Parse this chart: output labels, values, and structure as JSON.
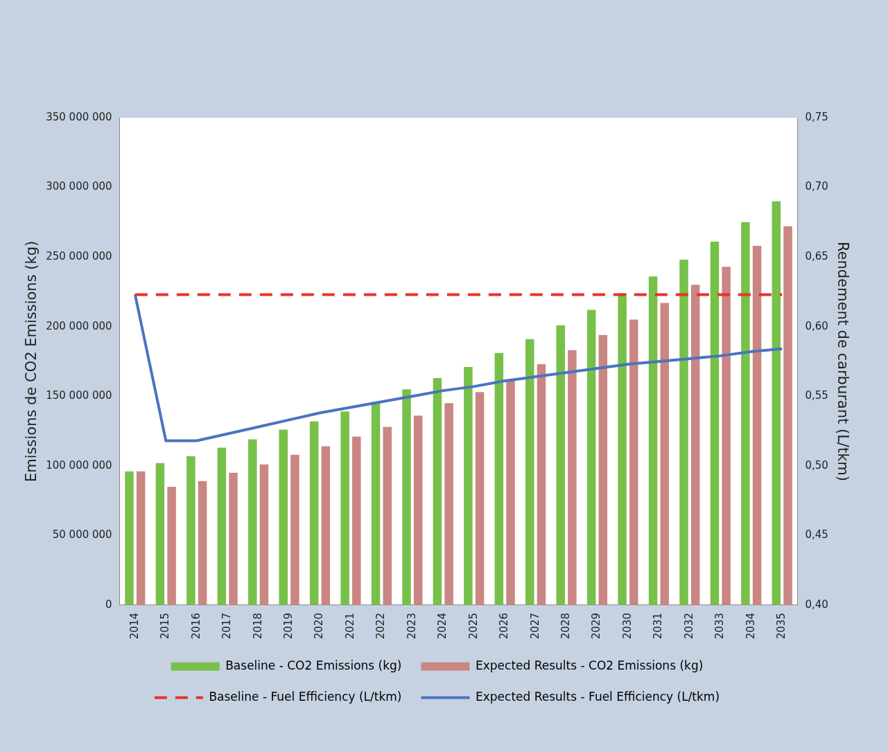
{
  "chart_data": {
    "type": "bar",
    "ylabel": "Emissions de CO2 Emissions (kg)",
    "y2label": "Rendement de carburant (L/tkm)",
    "categories": [
      "2014",
      "2015",
      "2016",
      "2017",
      "2018",
      "2019",
      "2020",
      "2021",
      "2022",
      "2023",
      "2024",
      "2025",
      "2026",
      "2027",
      "2028",
      "2029",
      "2030",
      "2031",
      "2032",
      "2033",
      "2034",
      "2035"
    ],
    "series": [
      {
        "name": "Baseline - CO2 Emissions (kg)",
        "color": "#77c04a",
        "values": [
          96000000,
          102000000,
          107000000,
          113000000,
          119000000,
          126000000,
          132000000,
          139000000,
          146000000,
          155000000,
          163000000,
          171000000,
          181000000,
          191000000,
          201000000,
          212000000,
          224000000,
          236000000,
          248000000,
          261000000,
          275000000,
          290000000
        ]
      },
      {
        "name": "Expected Results - CO2 Emissions (kg)",
        "color": "#c98683",
        "values": [
          96000000,
          85000000,
          89000000,
          95000000,
          101000000,
          108000000,
          114000000,
          121000000,
          128000000,
          136000000,
          145000000,
          153000000,
          162000000,
          173000000,
          183000000,
          194000000,
          205000000,
          217000000,
          230000000,
          243000000,
          258000000,
          272000000
        ]
      },
      {
        "name": "Baseline - Fuel Efficiency (L/tkm)",
        "type": "line",
        "axis": "y2",
        "line_style": "dashed",
        "marker": "none",
        "color": "#e8322a",
        "values": [
          0.623,
          0.623,
          0.623,
          0.623,
          0.623,
          0.623,
          0.623,
          0.623,
          0.623,
          0.623,
          0.623,
          0.623,
          0.623,
          0.623,
          0.623,
          0.623,
          0.623,
          0.623,
          0.623,
          0.623,
          0.623,
          0.623
        ]
      },
      {
        "name": "Expected Results - Fuel Efficiency (L/tkm)",
        "type": "line",
        "axis": "y2",
        "line_style": "solid",
        "marker": "none",
        "color": "#4a74c0",
        "values": [
          0.623,
          0.518,
          0.518,
          0.523,
          0.528,
          0.533,
          0.538,
          0.542,
          0.546,
          0.55,
          0.554,
          0.557,
          0.561,
          0.564,
          0.567,
          0.57,
          0.573,
          0.575,
          0.577,
          0.579,
          0.582,
          0.584
        ]
      }
    ],
    "ylim": [
      0,
      350000000
    ],
    "yticks": [
      {
        "value": 0,
        "label": "0"
      },
      {
        "value": 50000000,
        "label": "50 000 000"
      },
      {
        "value": 100000000,
        "label": "100 000 000"
      },
      {
        "value": 150000000,
        "label": "150 000 000"
      },
      {
        "value": 200000000,
        "label": "200 000 000"
      },
      {
        "value": 250000000,
        "label": "250 000 000"
      },
      {
        "value": 300000000,
        "label": "300 000 000"
      },
      {
        "value": 350000000,
        "label": "350 000 000"
      }
    ],
    "y2lim": [
      0.4,
      0.75
    ],
    "y2ticks": [
      {
        "value": 0.4,
        "label": "0,40"
      },
      {
        "value": 0.45,
        "label": "0,45"
      },
      {
        "value": 0.5,
        "label": "0,50"
      },
      {
        "value": 0.55,
        "label": "0,55"
      },
      {
        "value": 0.6,
        "label": "0,60"
      },
      {
        "value": 0.65,
        "label": "0,65"
      },
      {
        "value": 0.7,
        "label": "0,70"
      },
      {
        "value": 0.75,
        "label": "0,75"
      }
    ],
    "grid": false,
    "legend": "bottom"
  }
}
